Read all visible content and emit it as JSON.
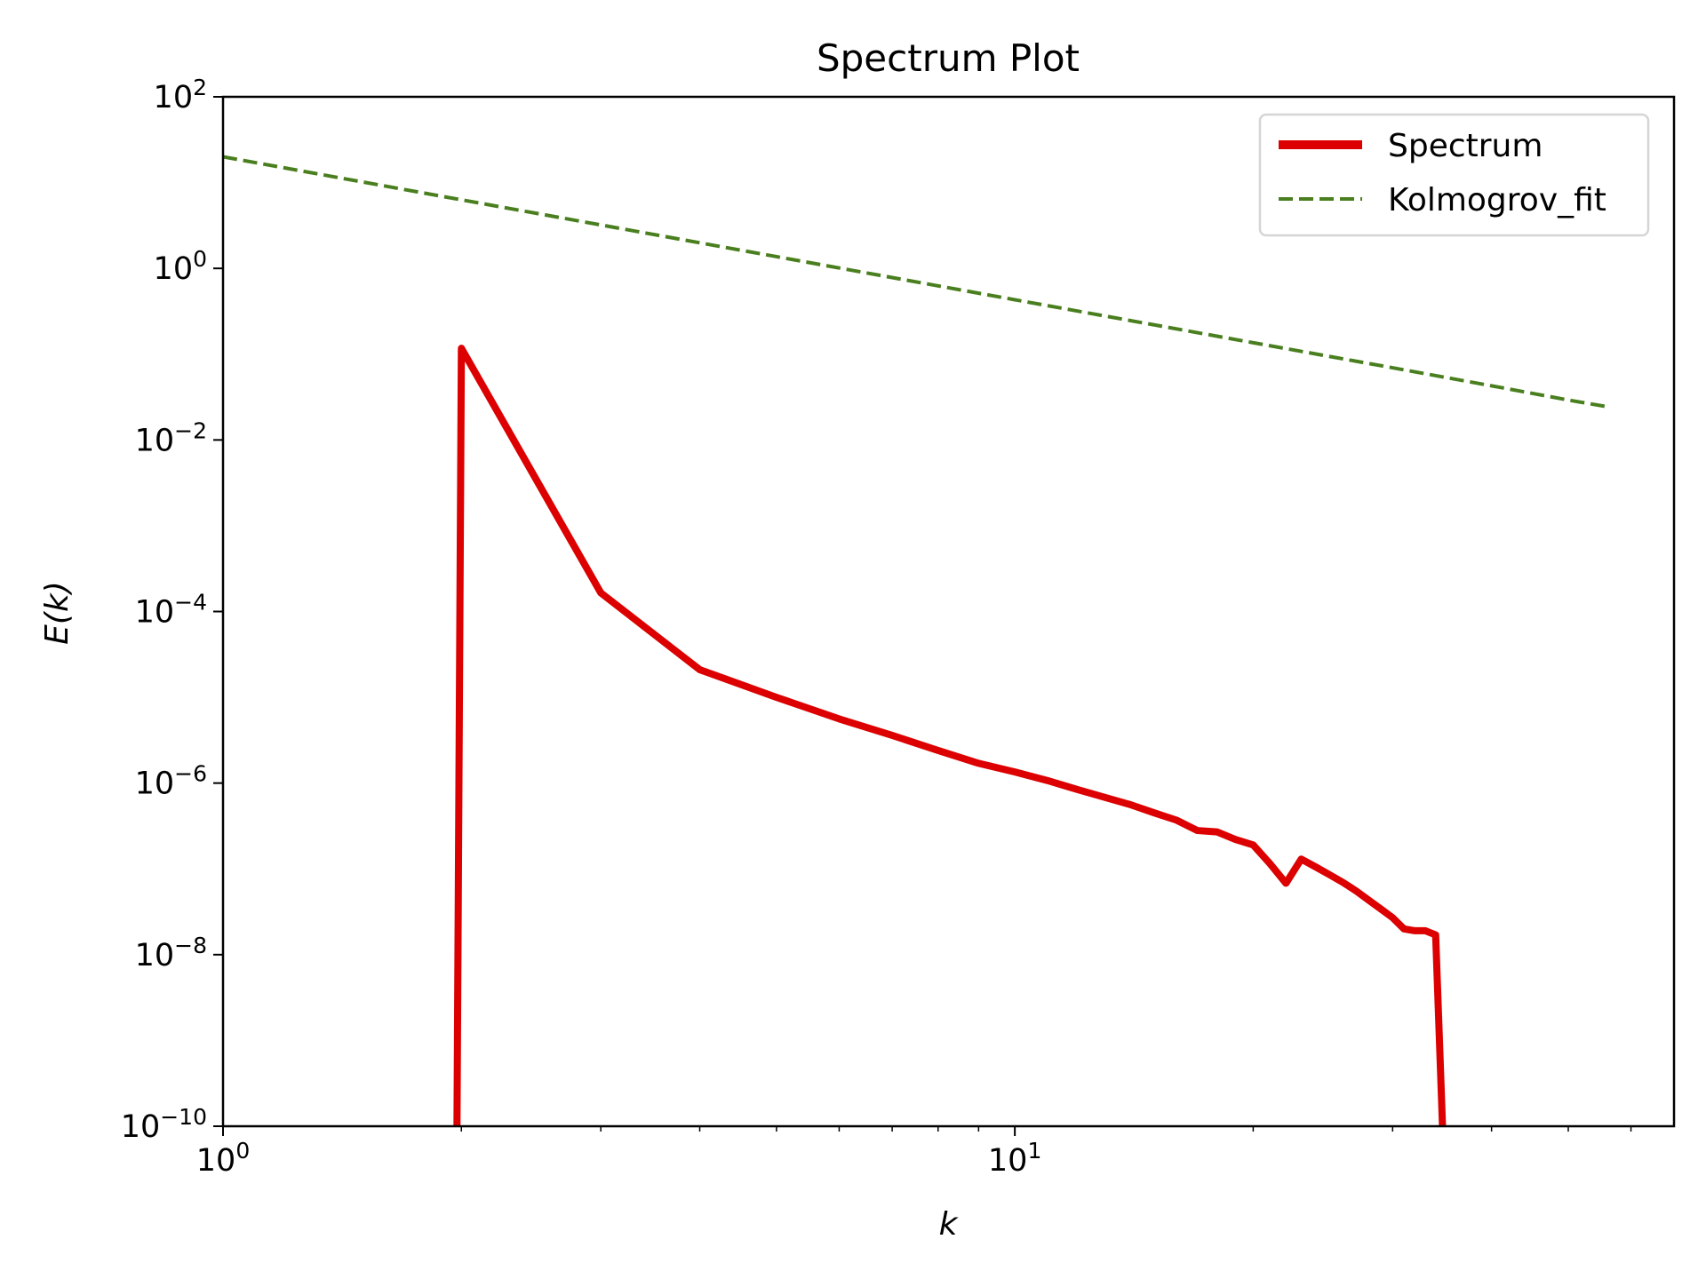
{
  "chart_data": {
    "type": "line",
    "title": "Spectrum Plot",
    "xlabel": "k",
    "ylabel": "E(k)",
    "xscale": "log",
    "yscale": "log",
    "xlim": [
      1,
      68
    ],
    "ylim": [
      1e-10,
      100
    ],
    "grid": false,
    "legend_placement": "upper right",
    "x_ticks": [
      {
        "value": 1,
        "base": "10",
        "exp": "0"
      },
      {
        "value": 10,
        "base": "10",
        "exp": "1"
      }
    ],
    "y_ticks": [
      {
        "value": 100,
        "base": "10",
        "exp": "2"
      },
      {
        "value": 1,
        "base": "10",
        "exp": "0"
      },
      {
        "value": 0.01,
        "base": "10",
        "exp": "−2"
      },
      {
        "value": 0.0001,
        "base": "10",
        "exp": "−4"
      },
      {
        "value": 1e-06,
        "base": "10",
        "exp": "−6"
      },
      {
        "value": 1e-08,
        "base": "10",
        "exp": "−8"
      },
      {
        "value": 1e-10,
        "base": "10",
        "exp": "−10"
      }
    ],
    "series": [
      {
        "name": "Spectrum",
        "color": "#dd0000",
        "style": "solid",
        "x": [
          1,
          2,
          3,
          4,
          5,
          6,
          7,
          8,
          9,
          10,
          11,
          12,
          13,
          14,
          15,
          16,
          17,
          18,
          19,
          20,
          21,
          22,
          23,
          24,
          25,
          26,
          27,
          28,
          29,
          30,
          31,
          32,
          33,
          34,
          35
        ],
        "y": [
          0,
          0.117,
          0.000165,
          2.1e-05,
          1e-05,
          5.6e-06,
          3.6e-06,
          2.4e-06,
          1.7e-06,
          1.35e-06,
          1.07e-06,
          8.4e-07,
          6.8e-07,
          5.6e-07,
          4.5e-07,
          3.7e-07,
          2.8e-07,
          2.7e-07,
          2.2e-07,
          1.9e-07,
          1.15e-07,
          6.8e-08,
          1.3e-07,
          1.05e-07,
          8.5e-08,
          6.9e-08,
          5.5e-08,
          4.3e-08,
          3.4e-08,
          2.7e-08,
          2e-08,
          1.9e-08,
          1.9e-08,
          1.7e-08,
          0
        ]
      },
      {
        "name": "Kolmogrov_fit",
        "color": "#4a7f1f",
        "style": "dashed",
        "x": [
          1,
          2,
          3,
          5,
          10,
          20,
          30,
          40,
          50,
          56
        ],
        "y": [
          20,
          6.3,
          3.21,
          1.37,
          0.431,
          0.136,
          0.0694,
          0.0428,
          0.0292,
          0.0244
        ]
      }
    ]
  }
}
